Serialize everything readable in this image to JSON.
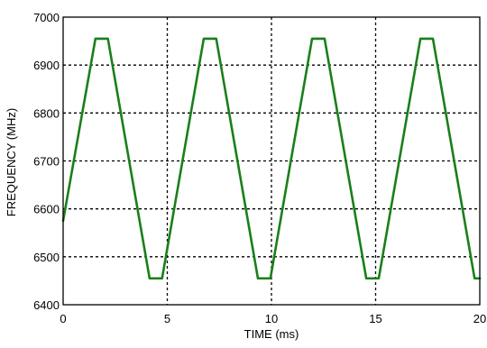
{
  "chart_data": {
    "type": "line",
    "title": "",
    "xlabel": "TIME (ms)",
    "ylabel": "FREQUENCY (MHz)",
    "xlim": [
      0,
      20
    ],
    "ylim": [
      6400,
      7000
    ],
    "x_ticks": [
      0,
      5,
      10,
      15,
      20
    ],
    "y_ticks": [
      6400,
      6500,
      6600,
      6700,
      6800,
      6900,
      7000
    ],
    "grid": true,
    "grid_style": "dotted",
    "legend": "none",
    "series": [
      {
        "color": "#1a7f1a",
        "x": [
          0,
          1.55,
          2.15,
          4.15,
          4.75,
          6.75,
          7.35,
          9.35,
          9.95,
          11.95,
          12.55,
          14.55,
          15.15,
          17.15,
          17.75,
          19.75,
          20
        ],
        "y": [
          6575,
          6955,
          6955,
          6455,
          6455,
          6955,
          6955,
          6455,
          6455,
          6955,
          6955,
          6455,
          6455,
          6955,
          6955,
          6455,
          6455
        ]
      }
    ]
  }
}
